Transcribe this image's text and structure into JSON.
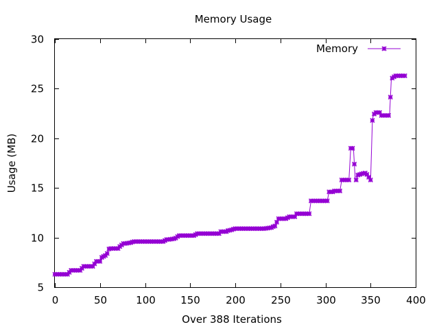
{
  "chart_data": {
    "type": "line",
    "title": "Memory Usage",
    "xlabel": "Over 388 Iterations",
    "ylabel": "Usage (MB)",
    "xlim": [
      0,
      400
    ],
    "ylim": [
      5,
      30
    ],
    "xticks": [
      0,
      50,
      100,
      150,
      200,
      250,
      300,
      350,
      400
    ],
    "yticks": [
      5,
      10,
      15,
      20,
      25,
      30
    ],
    "grid": false,
    "legend_position": "top-right",
    "marker": "star-points",
    "series": [
      {
        "name": "Memory",
        "color": "#9400d3",
        "x": [
          0,
          15,
          17,
          29,
          31,
          43,
          45,
          50,
          52,
          56,
          58,
          59,
          61,
          70,
          72,
          73,
          75,
          76,
          78,
          85,
          87,
          120,
          122,
          124,
          126,
          133,
          135,
          136,
          138,
          155,
          157,
          182,
          184,
          190,
          192,
          197,
          199,
          230,
          232,
          240,
          242,
          245,
          247,
          257,
          259,
          266,
          268,
          282,
          284,
          302,
          304,
          308,
          310,
          316,
          318,
          326,
          328,
          331,
          333,
          334,
          336,
          343,
          345,
          350,
          352,
          353,
          355,
          360,
          362,
          371,
          373,
          376,
          378,
          388
        ],
        "y": [
          6.3,
          6.3,
          6.7,
          6.7,
          7.1,
          7.1,
          7.6,
          7.6,
          8.0,
          8.2,
          8.4,
          8.8,
          8.9,
          8.9,
          9.1,
          9.2,
          9.3,
          9.4,
          9.4,
          9.5,
          9.6,
          9.6,
          9.7,
          9.8,
          9.8,
          9.9,
          10.0,
          10.1,
          10.2,
          10.2,
          10.4,
          10.4,
          10.6,
          10.6,
          10.7,
          10.8,
          10.9,
          10.9,
          10.9,
          11.0,
          11.1,
          11.2,
          11.9,
          11.9,
          12.1,
          12.1,
          12.4,
          12.4,
          13.7,
          13.7,
          14.6,
          14.6,
          14.7,
          14.7,
          15.8,
          15.8,
          19.0,
          19.0,
          15.8,
          15.8,
          16.3,
          16.5,
          16.5,
          15.8,
          21.8,
          22.3,
          22.6,
          22.6,
          22.3,
          22.3,
          26.0,
          26.2,
          26.3,
          26.3
        ]
      }
    ]
  }
}
